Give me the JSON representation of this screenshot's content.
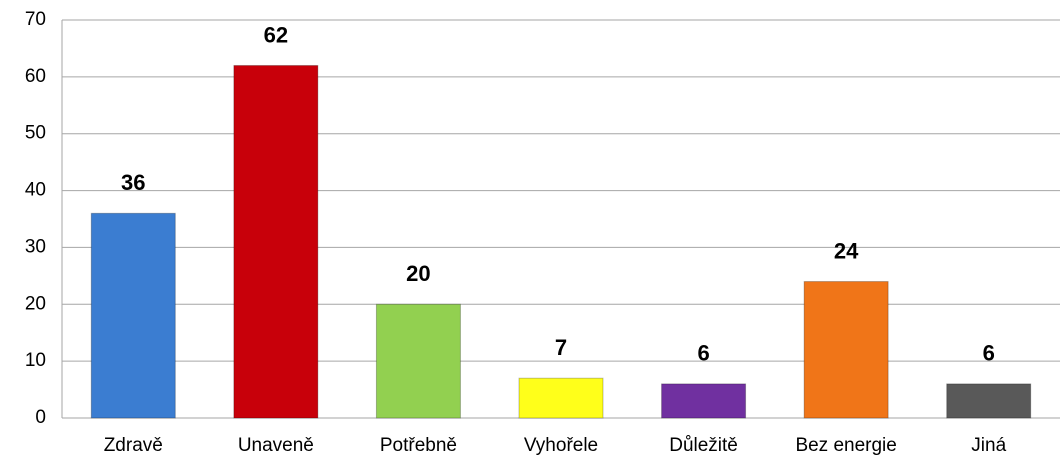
{
  "chart_data": {
    "type": "bar",
    "categories": [
      "Zdravě",
      "Unaveně",
      "Potřebně",
      "Vyhořele",
      "Důležitě",
      "Bez energie",
      "Jiná"
    ],
    "values": [
      36,
      62,
      20,
      7,
      6,
      24,
      6
    ],
    "colors": [
      "#3b7dd1",
      "#c8000a",
      "#92d050",
      "#ffff1a",
      "#7030a0",
      "#f07518",
      "#595959"
    ],
    "ylim": [
      0,
      70
    ],
    "yticks": [
      0,
      10,
      20,
      30,
      40,
      50,
      60,
      70
    ],
    "grid": true
  }
}
